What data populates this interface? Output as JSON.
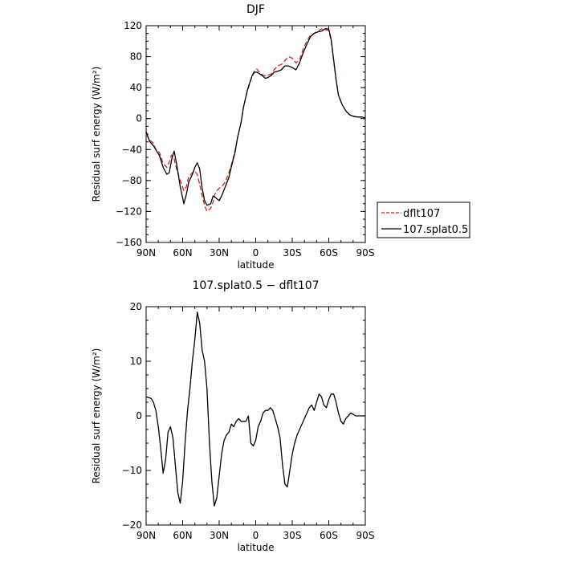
{
  "chart_data": [
    {
      "type": "line",
      "title": "DJF",
      "xlabel": "latitude",
      "ylabel": "Residual surf energy",
      "ylabel_units": "(W/m²)",
      "xlim": [
        -90,
        90
      ],
      "ylim": [
        -160,
        120
      ],
      "xticks": [
        {
          "value": -90,
          "label": "90N"
        },
        {
          "value": -60,
          "label": "60N"
        },
        {
          "value": -30,
          "label": "30N"
        },
        {
          "value": 0,
          "label": "0"
        },
        {
          "value": 30,
          "label": "30S"
        },
        {
          "value": 60,
          "label": "60S"
        },
        {
          "value": 90,
          "label": "90S"
        }
      ],
      "yticks": [
        -160,
        -120,
        -80,
        -40,
        0,
        40,
        80,
        120
      ],
      "grid": false,
      "legend_position": "outside-right",
      "series": [
        {
          "name": "dflt107",
          "color": "#d62020",
          "dash": "dashed",
          "x": [
            -90,
            -87,
            -84,
            -82,
            -79,
            -76,
            -73,
            -71,
            -69,
            -67,
            -65,
            -62,
            -59,
            -57,
            -55,
            -52,
            -50,
            -48,
            -46,
            -44,
            -42,
            -40,
            -37,
            -35,
            -33,
            -30,
            -28,
            -25,
            -22,
            -20,
            -17,
            -15,
            -12,
            -10,
            -7,
            -5,
            -3,
            -1,
            1,
            3,
            5,
            8,
            10,
            13,
            15,
            18,
            21,
            24,
            27,
            30,
            33,
            36,
            39,
            42,
            45,
            48,
            51,
            54,
            57,
            60,
            62,
            64,
            66,
            68,
            71,
            74,
            77,
            80,
            84,
            87,
            90
          ],
          "values": [
            -20,
            -28,
            -32,
            -40,
            -44,
            -58,
            -63,
            -56,
            -47,
            -52,
            -65,
            -80,
            -93,
            -88,
            -75,
            -70,
            -68,
            -72,
            -85,
            -100,
            -112,
            -120,
            -116,
            -108,
            -95,
            -90,
            -88,
            -82,
            -70,
            -60,
            -42,
            -25,
            -5,
            15,
            35,
            45,
            55,
            62,
            64,
            60,
            57,
            55,
            56,
            58,
            63,
            68,
            70,
            75,
            80,
            78,
            72,
            76,
            90,
            100,
            108,
            110,
            113,
            116,
            115,
            114,
            100,
            75,
            50,
            30,
            18,
            10,
            5,
            3,
            2,
            2,
            1
          ]
        },
        {
          "name": "107.splat0.5",
          "color": "#000000",
          "dash": "solid",
          "x": [
            -90,
            -87,
            -84,
            -82,
            -79,
            -76,
            -73,
            -71,
            -69,
            -67,
            -65,
            -62,
            -59,
            -57,
            -55,
            -52,
            -50,
            -48,
            -46,
            -44,
            -42,
            -40,
            -37,
            -35,
            -33,
            -30,
            -28,
            -25,
            -22,
            -20,
            -17,
            -15,
            -12,
            -10,
            -7,
            -5,
            -3,
            -1,
            1,
            3,
            5,
            8,
            10,
            13,
            15,
            18,
            21,
            24,
            27,
            30,
            33,
            36,
            39,
            42,
            45,
            48,
            51,
            54,
            57,
            60,
            62,
            64,
            66,
            68,
            71,
            74,
            77,
            80,
            84,
            87,
            90
          ],
          "values": [
            -17,
            -30,
            -35,
            -40,
            -48,
            -63,
            -72,
            -70,
            -53,
            -42,
            -58,
            -88,
            -110,
            -98,
            -82,
            -72,
            -63,
            -57,
            -65,
            -90,
            -106,
            -112,
            -110,
            -100,
            -102,
            -106,
            -100,
            -88,
            -76,
            -62,
            -44,
            -25,
            -5,
            15,
            36,
            46,
            55,
            60,
            60,
            58,
            56,
            52,
            53,
            56,
            60,
            61,
            63,
            68,
            68,
            66,
            63,
            72,
            85,
            96,
            106,
            110,
            112,
            113,
            116,
            116,
            102,
            76,
            50,
            30,
            18,
            10,
            5,
            3,
            2,
            2,
            1
          ]
        }
      ]
    },
    {
      "type": "line",
      "title": "107.splat0.5 − dflt107",
      "xlabel": "latitude",
      "ylabel": "Residual surf energy",
      "ylabel_units": "(W/m²)",
      "xlim": [
        -90,
        90
      ],
      "ylim": [
        -20,
        20
      ],
      "xticks": [
        {
          "value": -90,
          "label": "90N"
        },
        {
          "value": -60,
          "label": "60N"
        },
        {
          "value": -30,
          "label": "30N"
        },
        {
          "value": 0,
          "label": "0"
        },
        {
          "value": 30,
          "label": "30S"
        },
        {
          "value": 60,
          "label": "60S"
        },
        {
          "value": 90,
          "label": "90S"
        }
      ],
      "yticks": [
        -20,
        -10,
        0,
        10,
        20
      ],
      "grid": false,
      "series": [
        {
          "color": "#000000",
          "dash": "solid",
          "x": [
            -90,
            -86,
            -84,
            -82,
            -80,
            -78,
            -76,
            -74,
            -72,
            -70,
            -68,
            -66,
            -64,
            -62,
            -60,
            -58,
            -56,
            -54,
            -52,
            -50,
            -48,
            -46,
            -44,
            -42,
            -40,
            -38,
            -36,
            -34,
            -32,
            -30,
            -28,
            -26,
            -24,
            -22,
            -20,
            -18,
            -16,
            -14,
            -12,
            -10,
            -8,
            -6,
            -4,
            -2,
            0,
            2,
            4,
            6,
            8,
            10,
            12,
            14,
            16,
            18,
            20,
            22,
            24,
            26,
            28,
            30,
            32,
            34,
            36,
            38,
            40,
            42,
            44,
            46,
            48,
            50,
            52,
            54,
            56,
            58,
            60,
            62,
            64,
            66,
            68,
            70,
            72,
            74,
            76,
            78,
            80,
            82,
            84,
            86,
            88,
            90
          ],
          "values": [
            3.5,
            3.2,
            2.5,
            1.0,
            -2.0,
            -6.0,
            -10.5,
            -8.0,
            -3.0,
            -2.0,
            -4.0,
            -9.0,
            -14.0,
            -16.0,
            -12.0,
            -5.0,
            1.0,
            5.0,
            10.0,
            14.0,
            19.0,
            17.0,
            12.0,
            10.0,
            5.0,
            -5.0,
            -12.0,
            -16.5,
            -15.0,
            -11.0,
            -7.0,
            -4.5,
            -3.5,
            -3.0,
            -1.5,
            -2.0,
            -1.0,
            -0.5,
            -1.0,
            -1.0,
            -1.0,
            0.0,
            -5.0,
            -5.5,
            -4.5,
            -2.0,
            -1.0,
            0.5,
            1.0,
            1.0,
            1.5,
            1.0,
            -0.5,
            -2.0,
            -4.0,
            -9.0,
            -12.5,
            -13.0,
            -10.0,
            -7.0,
            -5.0,
            -3.5,
            -2.5,
            -1.5,
            -0.5,
            0.5,
            1.5,
            2.0,
            1.0,
            2.5,
            4.0,
            3.5,
            2.0,
            1.5,
            3.0,
            4.0,
            4.0,
            2.5,
            0.5,
            -1.0,
            -1.5,
            -0.5,
            0.0,
            0.5,
            0.3,
            0.0,
            0.0,
            0.0,
            0.0,
            0.0
          ]
        }
      ]
    }
  ]
}
